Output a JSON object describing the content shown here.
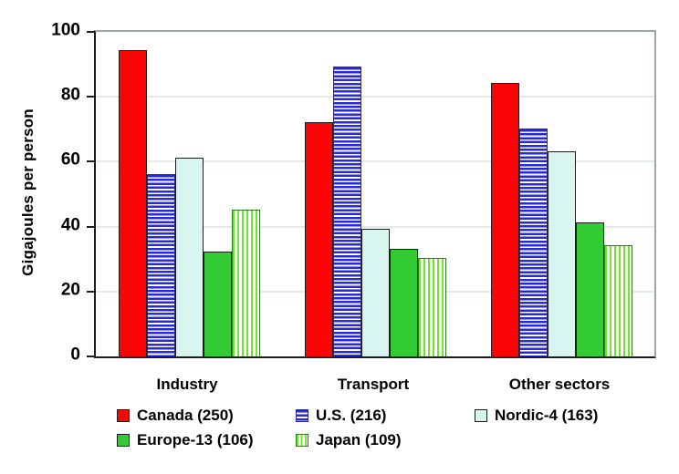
{
  "chart_data": {
    "type": "bar",
    "title": "",
    "ylabel": "Gigajoules per person",
    "xlabel": "",
    "ylim": [
      0,
      100
    ],
    "yticks": [
      0,
      20,
      40,
      60,
      80,
      100
    ],
    "grid": "horizontal",
    "legend_position": "bottom",
    "categories": [
      "Industry",
      "Transport",
      "Other sectors"
    ],
    "series": [
      {
        "name": "Canada (250)",
        "values": [
          94,
          72,
          84
        ],
        "pattern": "solid",
        "color": "#fa0505",
        "border": "#1c1c1c"
      },
      {
        "name": "U.S. (216)",
        "values": [
          56,
          89,
          70
        ],
        "pattern": "hstripes",
        "color": "#2828dc",
        "border": "#2323b4"
      },
      {
        "name": "Nordic-4 (163)",
        "values": [
          61,
          39,
          63
        ],
        "pattern": "solid",
        "color": "#d9f5ef",
        "border": "#1c1c1c"
      },
      {
        "name": "Europe-13 (106)",
        "values": [
          32,
          33,
          41
        ],
        "pattern": "solid",
        "color": "#33cb33",
        "border": "#1c1c1c"
      },
      {
        "name": "Japan (109)",
        "values": [
          45,
          30,
          34
        ],
        "pattern": "vstripes",
        "color": "#70e232",
        "border": "#2d7a1f"
      }
    ]
  },
  "colors": {
    "background": "#ffffff",
    "text": "#000000",
    "grid": "#e4eae8",
    "plot_border": "#9caaa5",
    "axis": "#1c1c1c"
  }
}
